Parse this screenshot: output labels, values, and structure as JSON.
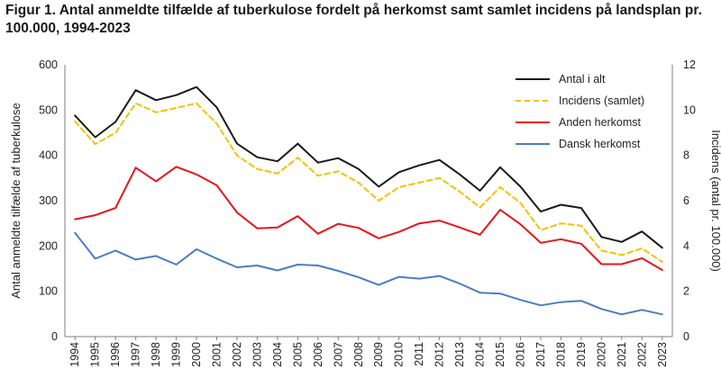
{
  "figure": {
    "title": "Figur 1. Antal anmeldte tilfælde af tuberkulose fordelt på herkomst samt samlet incidens på landsplan pr. 100.000, 1994-2023"
  },
  "chart_data": {
    "type": "line",
    "x": [
      "1994",
      "1995",
      "1996",
      "1997",
      "1998",
      "1999",
      "2000",
      "2001",
      "2002",
      "2003",
      "2004",
      "2005",
      "2006",
      "2007",
      "2008",
      "2009",
      "2010",
      "2011",
      "2012",
      "2013",
      "2014",
      "2015",
      "2016",
      "2017",
      "2018",
      "2019",
      "2020",
      "2021",
      "2022",
      "2023"
    ],
    "ylabel": "Antal anmeldte tilfælde af tuberkulose",
    "ylim": [
      0,
      600
    ],
    "yticks": [
      0,
      100,
      200,
      300,
      400,
      500,
      600
    ],
    "y2label": "Incidens (antal pr. 100.000)",
    "y2lim": [
      0,
      12
    ],
    "y2ticks": [
      0,
      2,
      4,
      6,
      8,
      10,
      12
    ],
    "grid": false,
    "legend_position": "top-right",
    "series": [
      {
        "name": "Antal i alt",
        "axis": "left",
        "color": "#1a1a1a",
        "dash": "solid",
        "values": [
          488,
          440,
          474,
          544,
          522,
          533,
          551,
          506,
          426,
          396,
          387,
          426,
          384,
          394,
          370,
          331,
          363,
          378,
          390,
          358,
          322,
          374,
          331,
          276,
          291,
          284,
          220,
          209,
          232,
          196
        ]
      },
      {
        "name": "Incidens (samlet)",
        "axis": "right",
        "color": "#f2c200",
        "dash": "dashed",
        "values": [
          9.5,
          8.5,
          9.0,
          10.3,
          9.9,
          10.1,
          10.3,
          9.4,
          8.0,
          7.4,
          7.2,
          7.9,
          7.1,
          7.3,
          6.8,
          6.0,
          6.6,
          6.8,
          7.0,
          6.4,
          5.7,
          6.6,
          5.9,
          4.7,
          5.0,
          4.9,
          3.8,
          3.6,
          3.9,
          3.3
        ]
      },
      {
        "name": "Anden herkomst",
        "axis": "left",
        "color": "#e8141b",
        "dash": "solid",
        "values": [
          259,
          268,
          284,
          373,
          343,
          375,
          358,
          334,
          274,
          239,
          241,
          266,
          227,
          249,
          240,
          217,
          231,
          250,
          256,
          241,
          225,
          280,
          248,
          207,
          215,
          205,
          160,
          160,
          173,
          147
        ]
      },
      {
        "name": "Dansk herkomst",
        "axis": "left",
        "color": "#4a7ebf",
        "dash": "solid",
        "values": [
          229,
          172,
          190,
          170,
          178,
          159,
          193,
          172,
          153,
          157,
          146,
          159,
          157,
          145,
          131,
          114,
          132,
          128,
          134,
          117,
          97,
          95,
          81,
          69,
          76,
          79,
          61,
          49,
          59,
          49
        ]
      }
    ]
  }
}
